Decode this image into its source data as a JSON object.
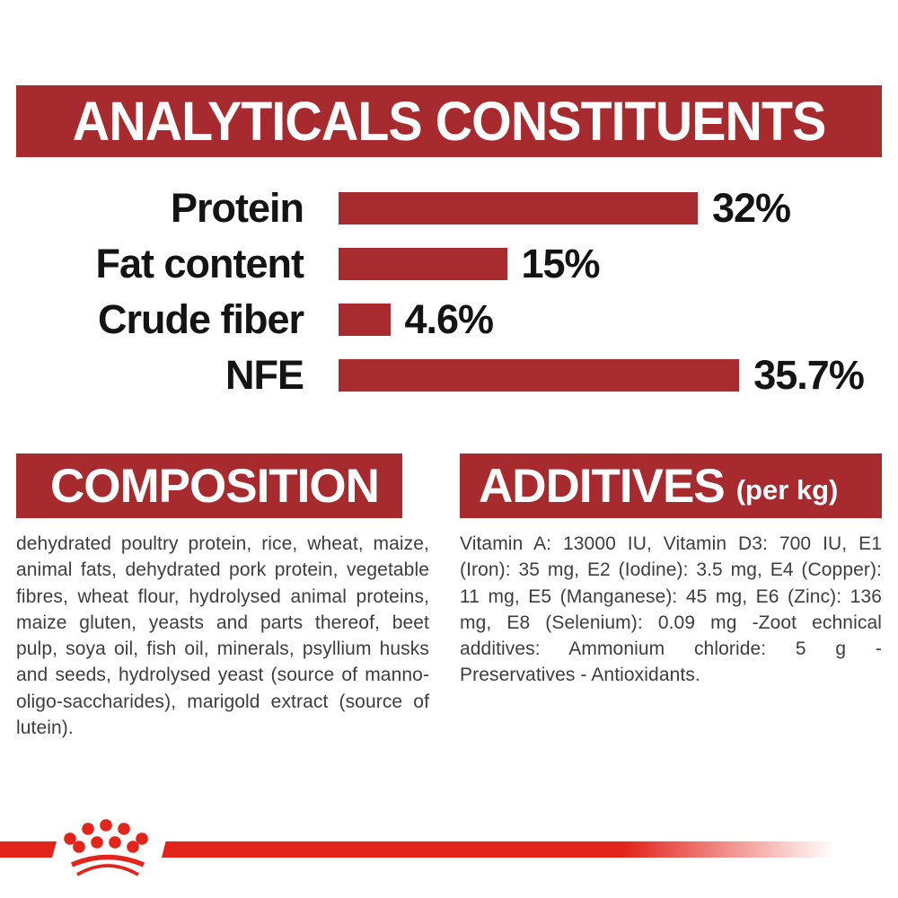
{
  "analyticals": {
    "title": "ANALYTICALS CONSTITUENTS"
  },
  "chart_data": {
    "type": "bar",
    "orientation": "horizontal",
    "title": "ANALYTICALS CONSTITUENTS",
    "categories": [
      "Protein",
      "Fat content",
      "Crude fiber",
      "NFE"
    ],
    "values": [
      32,
      15,
      4.6,
      35.7
    ],
    "value_labels": [
      "32%",
      "15%",
      "4.6%",
      "35.7%"
    ],
    "unit": "%",
    "xlim": [
      0,
      40
    ],
    "grid": false,
    "legend": false,
    "bar_color": "#A72B2F"
  },
  "composition": {
    "title": "COMPOSITION",
    "text": "dehydrated poultry protein, rice, wheat, maize, animal fats, dehydrated pork protein, vegetable fibres, wheat flour, hydrolysed animal proteins, maize gluten, yeasts and parts thereof, beet pulp, soya oil, fish oil, minerals, psyllium husks and seeds, hydrolysed yeast (source of manno-oligo-saccharides), marigold extract (source of lutein)."
  },
  "additives": {
    "title": "ADDITIVES",
    "unit": "(per kg)",
    "text": "Vitamin A: 13000 IU, Vitamin D3: 700 IU, E1 (Iron): 35 mg, E2 (Iodine): 3.5 mg, E4 (Copper): 11 mg, E5 (Manganese): 45 mg, E6 (Zinc): 136 mg, E8 (Selenium): 0.09 mg -Zoot echnical additives: Ammonium chloride: 5 g - Preservatives - Antioxidants."
  },
  "icons": {
    "brand_logo": "royal-canin-crown"
  },
  "colors": {
    "banner_red": "#A62A2E",
    "bar_red": "#A72B2F",
    "logo_red": "#E3241B",
    "text_dark": "#3D3D3D",
    "label_black": "#141414"
  }
}
